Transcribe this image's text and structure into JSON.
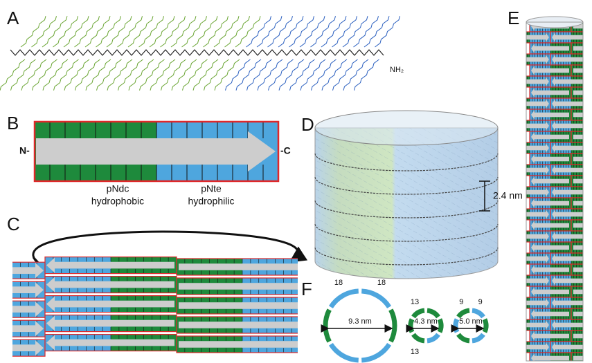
{
  "panels": {
    "a": {
      "label": "A",
      "terminus": "NH₂"
    },
    "b": {
      "label": "B",
      "n_terminus": "N-",
      "c_terminus": "-C",
      "blocks": [
        {
          "name": "pNdc",
          "property": "hydrophobic"
        },
        {
          "name": "pNte",
          "property": "hydrophilic"
        }
      ]
    },
    "c": {
      "label": "C"
    },
    "d": {
      "label": "D",
      "spacing": "2.4 nm"
    },
    "e": {
      "label": "E"
    },
    "f": {
      "label": "F",
      "rings": [
        {
          "counts": [
            "18",
            "18"
          ],
          "diameter": "9.3 nm"
        },
        {
          "counts": [
            "13",
            "13"
          ],
          "diameter": "4.3 nm"
        },
        {
          "counts": [
            "9",
            "9"
          ],
          "diameter": "5.0 nm"
        }
      ]
    }
  }
}
